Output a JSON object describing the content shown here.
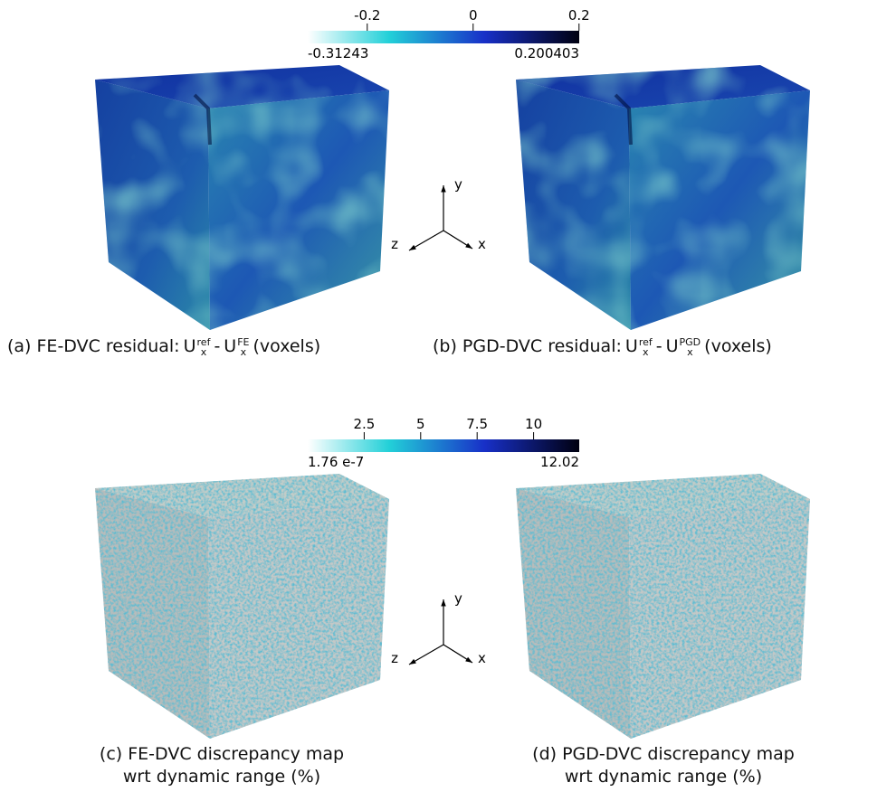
{
  "colorbars": [
    {
      "ticks": [
        -0.2,
        0,
        0.2
      ],
      "range": [
        -0.31243,
        0.200403
      ]
    },
    {
      "ticks": [
        2.5,
        5,
        7.5,
        10
      ],
      "range": [
        {
          "value": 1.76e-07,
          "label": "1.76 e-7"
        },
        12.02
      ]
    }
  ],
  "captions": [
    {
      "label": "(a) FE-DVC residual:",
      "terms": [
        {
          "base": "U",
          "sub": "x",
          "sup": "ref"
        },
        {
          "base": "U",
          "sub": "x",
          "sup": "FE"
        }
      ],
      "operator": "-",
      "unit": "(voxels)"
    },
    {
      "label": "(b) PGD-DVC residual:",
      "terms": [
        {
          "base": "U",
          "sub": "x",
          "sup": "ref"
        },
        {
          "base": "U",
          "sub": "x",
          "sup": "PGD"
        }
      ],
      "operator": "-",
      "unit": "(voxels)"
    },
    {
      "lines": [
        "(c) FE-DVC discrepancy map",
        "wrt dynamic range (%)"
      ]
    },
    {
      "lines": [
        "(d) PGD-DVC discrepancy map",
        "wrt dynamic range (%)"
      ]
    }
  ],
  "axis_labels": [
    "x",
    "y",
    "z"
  ]
}
